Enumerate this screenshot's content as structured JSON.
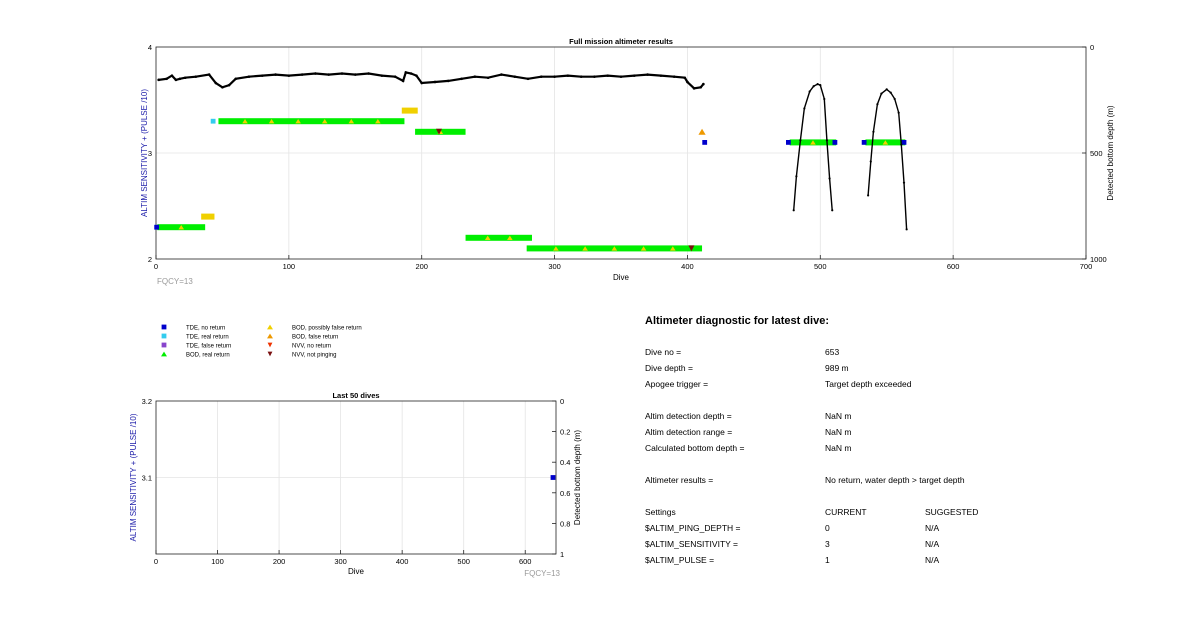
{
  "chart_data": [
    {
      "type": "scatter",
      "title": "Full mission altimeter results",
      "xlabel": "Dive",
      "ylabel_left": "ALTIM SENSITIVITY + (PULSE /10)",
      "ylabel_right": "Detected bottom depth (m)",
      "xlim": [
        0,
        700
      ],
      "ylim_left": [
        2,
        4
      ],
      "ylim_right": [
        1000,
        0
      ],
      "xticks": [
        "0",
        "100",
        "200",
        "300",
        "400",
        "500",
        "600",
        "700"
      ],
      "yticks_left": [
        "2",
        "3",
        "4"
      ],
      "yticks_right": [
        "0",
        "500",
        "1000"
      ],
      "grid": true,
      "annotation": "FQCY=13",
      "segments": [
        {
          "kind": "BOD, real return",
          "color": "#00ee00",
          "x0": 1,
          "x1": 37,
          "y": 2.3
        },
        {
          "kind": "BOD, possibly false return",
          "color": "#f0d000",
          "x0": 34,
          "x1": 44,
          "y": 2.4
        },
        {
          "kind": "BOD, real return",
          "color": "#00ee00",
          "x0": 47,
          "x1": 187,
          "y": 3.3
        },
        {
          "kind": "BOD, possibly false return",
          "color": "#f0d000",
          "x0": 185,
          "x1": 197,
          "y": 3.4
        },
        {
          "kind": "BOD, real return",
          "color": "#00ee00",
          "x0": 195,
          "x1": 233,
          "y": 3.2
        },
        {
          "kind": "BOD, real return",
          "color": "#00ee00",
          "x0": 233,
          "x1": 283,
          "y": 2.2
        },
        {
          "kind": "BOD, real return",
          "color": "#00ee00",
          "x0": 279,
          "x1": 411,
          "y": 2.1
        },
        {
          "kind": "BOD, real return",
          "color": "#00ee00",
          "x0": 477,
          "x1": 512,
          "y": 3.1
        },
        {
          "kind": "BOD, real return",
          "color": "#00ee00",
          "x0": 534,
          "x1": 564,
          "y": 3.1
        }
      ],
      "markers": [
        {
          "kind": "TDE, no return",
          "x": 0.5,
          "y": 2.3
        },
        {
          "kind": "TDE, real return",
          "x": 43,
          "y": 3.3
        },
        {
          "kind": "BOD, false return",
          "x": 411,
          "y": 3.2
        },
        {
          "kind": "TDE, no return",
          "x": 413,
          "y": 3.1
        },
        {
          "kind": "TDE, no return",
          "x": 476,
          "y": 3.1
        },
        {
          "kind": "TDE, no return",
          "x": 511,
          "y": 3.1
        },
        {
          "kind": "TDE, no return",
          "x": 533,
          "y": 3.1
        },
        {
          "kind": "TDE, no return",
          "x": 563,
          "y": 3.1
        },
        {
          "kind": "NVV, not pinging",
          "x": 213,
          "y": 3.2
        },
        {
          "kind": "NVV, not pinging",
          "x": 403,
          "y": 2.1
        }
      ],
      "depth_series": {
        "name": "Detected bottom depth",
        "x": [
          2,
          8,
          12,
          15,
          18,
          22,
          30,
          40,
          45,
          50,
          55,
          60,
          70,
          80,
          90,
          100,
          110,
          120,
          130,
          140,
          150,
          160,
          170,
          180,
          186,
          188,
          192,
          196,
          200,
          210,
          220,
          230,
          240,
          250,
          260,
          270,
          280,
          290,
          300,
          310,
          320,
          330,
          340,
          350,
          360,
          370,
          380,
          390,
          398,
          400,
          405,
          410,
          412
        ],
        "y": [
          155,
          150,
          135,
          155,
          150,
          145,
          140,
          130,
          170,
          190,
          180,
          150,
          140,
          135,
          130,
          135,
          130,
          125,
          130,
          125,
          130,
          125,
          135,
          140,
          160,
          120,
          125,
          135,
          170,
          165,
          160,
          150,
          140,
          145,
          130,
          140,
          150,
          140,
          140,
          135,
          140,
          140,
          135,
          140,
          135,
          130,
          135,
          140,
          145,
          165,
          195,
          190,
          175
        ]
      },
      "profiles": [
        {
          "x": [
            480,
            482,
            485,
            488,
            492,
            495,
            498,
            500,
            503,
            505,
            507,
            509
          ],
          "y": [
            770,
            610,
            440,
            290,
            210,
            185,
            175,
            180,
            245,
            440,
            620,
            770
          ]
        },
        {
          "x": [
            536,
            538,
            540,
            543,
            546,
            550,
            553,
            556,
            559,
            561,
            563,
            565
          ],
          "y": [
            700,
            540,
            400,
            270,
            220,
            200,
            215,
            245,
            310,
            460,
            640,
            860
          ]
        }
      ]
    },
    {
      "type": "scatter",
      "title": "Last 50 dives",
      "xlabel": "Dive",
      "ylabel_left": "ALTIM SENSITIVITY + (PULSE /10)",
      "ylabel_right": "Detected bottom depth (m)",
      "xlim": [
        0,
        650
      ],
      "ylim_left": [
        3.0,
        3.2
      ],
      "ylim_right": [
        1,
        0
      ],
      "xticks": [
        "0",
        "100",
        "200",
        "300",
        "400",
        "500",
        "600"
      ],
      "yticks_left": [
        "3.1",
        "3.2"
      ],
      "yticks_right": [
        "0",
        "0.2",
        "0.4",
        "0.6",
        "0.8",
        "1"
      ],
      "grid": true,
      "annotation": "FQCY=13",
      "markers": [
        {
          "kind": "TDE, no return",
          "x": 653,
          "y": 3.1
        }
      ]
    }
  ],
  "legend": [
    {
      "label": "TDE, no return",
      "shape": "square",
      "color": "#0000cc"
    },
    {
      "label": "TDE, real return",
      "shape": "square",
      "color": "#33ccee"
    },
    {
      "label": "TDE, false return",
      "shape": "square",
      "color": "#8844cc"
    },
    {
      "label": "BOD, real return",
      "shape": "triangle-up",
      "color": "#00ee00"
    },
    {
      "label": "BOD, possibly false return",
      "shape": "triangle-up",
      "color": "#f0d000"
    },
    {
      "label": "BOD, false return",
      "shape": "triangle-up",
      "color": "#ee9900"
    },
    {
      "label": "NVV, no return",
      "shape": "triangle-down",
      "color": "#ee3300"
    },
    {
      "label": "NVV, not pinging",
      "shape": "triangle-down",
      "color": "#7a1010"
    }
  ],
  "diagnostic": {
    "title": "Altimeter diagnostic for latest dive:",
    "rows": [
      {
        "label": "Dive no =",
        "value": "653"
      },
      {
        "label": "Dive depth =",
        "value": "989 m"
      },
      {
        "label": "Apogee trigger =",
        "value": "Target depth exceeded"
      },
      {
        "label": "Altim detection depth =",
        "value": "NaN m"
      },
      {
        "label": "Altim detection range =",
        "value": "NaN m"
      },
      {
        "label": "Calculated bottom depth =",
        "value": "NaN m"
      },
      {
        "label": "Altimeter results =",
        "value": "No return, water depth > target depth"
      }
    ],
    "settings": {
      "header": [
        "Settings",
        "CURRENT",
        "SUGGESTED"
      ],
      "rows": [
        {
          "name": "$ALTIM_PING_DEPTH =",
          "current": "0",
          "suggested": "N/A"
        },
        {
          "name": "$ALTIM_SENSITIVITY =",
          "current": "3",
          "suggested": "N/A"
        },
        {
          "name": "$ALTIM_PULSE =",
          "current": "1",
          "suggested": "N/A"
        }
      ]
    }
  },
  "colors": {
    "axis_label": "#1a1aa8",
    "grid": "#e4e4e4",
    "annotation": "#9a9a9a",
    "depth_line": "#000000"
  }
}
